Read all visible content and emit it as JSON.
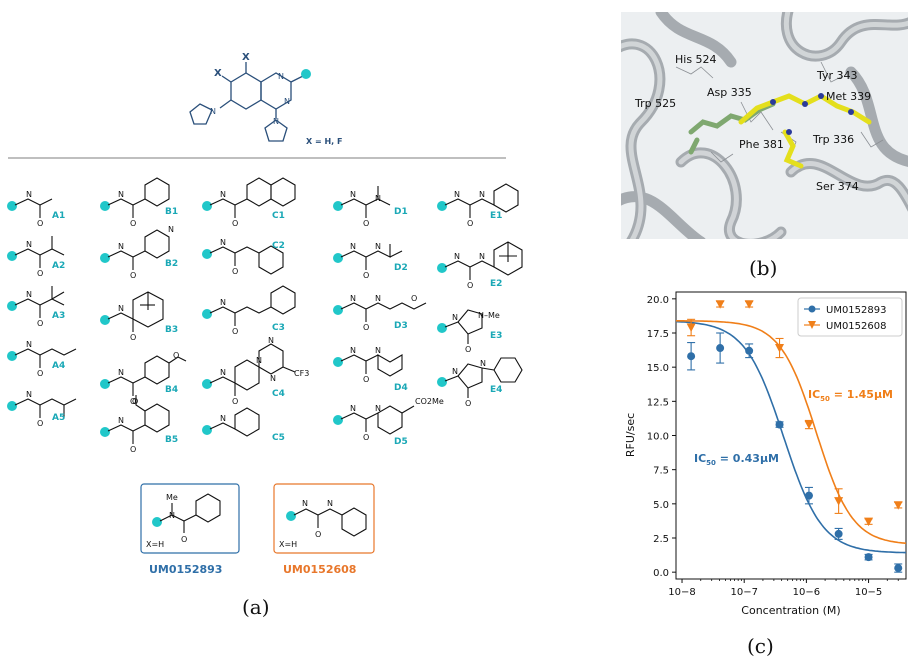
{
  "panel_a": {
    "label": "(a)",
    "core": {
      "x_label": "X",
      "substituent_note": "X = H, F"
    },
    "groups": {
      "A": [
        "A1",
        "A2",
        "A3",
        "A4",
        "A5"
      ],
      "B": [
        "B1",
        "B2",
        "B3",
        "B4",
        "B5"
      ],
      "C": [
        "C1",
        "C2",
        "C3",
        "C4",
        "C5"
      ],
      "D": [
        "D1",
        "D2",
        "D3",
        "D4",
        "D5"
      ],
      "E": [
        "E1",
        "E2",
        "E3",
        "E4"
      ]
    },
    "atoms": {
      "N": "N",
      "O": "O",
      "H": "H",
      "Me": "Me",
      "NMe": "N–Me",
      "CF3": "CF3",
      "CO2Me": "CO2Me"
    },
    "hits": [
      {
        "name": "UM0152893",
        "note": "X=H",
        "color": "#2f6fa8"
      },
      {
        "name": "UM0152608",
        "note": "X=H",
        "color": "#e8772b"
      }
    ]
  },
  "panel_b": {
    "label": "(b)",
    "residues": [
      "His 524",
      "Tyr 343",
      "Met 339",
      "Trp 525",
      "Asp 335",
      "Phe 381",
      "Trp 336",
      "Ser 374"
    ]
  },
  "panel_c": {
    "label": "(c)",
    "chart_data": {
      "type": "scatter",
      "xlabel": "Concentration (M)",
      "ylabel": "RFU/sec",
      "xscale": "log",
      "xlim": [
        8e-09,
        4e-05
      ],
      "ylim": [
        -0.5,
        20.5
      ],
      "yticks": [
        "0.0",
        "2.5",
        "5.0",
        "7.5",
        "10.0",
        "12.5",
        "15.0",
        "17.5",
        "20.0"
      ],
      "xticks": [
        "10−8",
        "10−7",
        "10−6",
        "10−5"
      ],
      "legend": "top-right",
      "series": [
        {
          "name": "UM0152893",
          "color": "#2f6fa8",
          "marker": "circle",
          "x": [
            1.4e-08,
            4.1e-08,
            1.2e-07,
            3.7e-07,
            1.1e-06,
            3.3e-06,
            1e-05,
            3e-05
          ],
          "y": [
            15.8,
            16.4,
            16.2,
            10.8,
            5.6,
            2.8,
            1.1,
            0.3
          ],
          "err": [
            1.0,
            1.1,
            0.5,
            0.2,
            0.6,
            0.4,
            0.2,
            0.3
          ],
          "fit": {
            "top": 18.4,
            "bottom": 1.4,
            "ic50": 4.3e-07,
            "hill": 1.4
          },
          "annotation": "IC50 = 0.43μM"
        },
        {
          "name": "UM0152608",
          "color": "#f07f19",
          "marker": "triangle-down",
          "x": [
            1.4e-08,
            4.1e-08,
            1.2e-07,
            3.7e-07,
            1.1e-06,
            3.3e-06,
            1e-05,
            3e-05
          ],
          "y": [
            17.9,
            19.6,
            19.6,
            16.4,
            10.8,
            5.2,
            3.7,
            4.9
          ],
          "err": [
            0.6,
            0.2,
            0.2,
            0.7,
            0.3,
            0.9,
            0.2,
            0.2
          ],
          "fit": {
            "top": 18.4,
            "bottom": 2.0,
            "ic50": 1.45e-06,
            "hill": 1.5
          },
          "annotation": "IC50 = 1.45μM"
        }
      ]
    }
  }
}
